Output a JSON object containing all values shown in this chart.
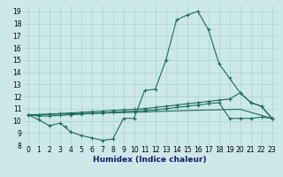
{
  "xlabel": "Humidex (Indice chaleur)",
  "xlim": [
    -0.5,
    23.5
  ],
  "ylim": [
    8,
    19.5
  ],
  "xticks": [
    0,
    1,
    2,
    3,
    4,
    5,
    6,
    7,
    8,
    9,
    10,
    11,
    12,
    13,
    14,
    15,
    16,
    17,
    18,
    19,
    20,
    21,
    22,
    23
  ],
  "yticks": [
    8,
    9,
    10,
    11,
    12,
    13,
    14,
    15,
    16,
    17,
    18,
    19
  ],
  "bg_color": "#cce8e8",
  "grid_color": "#b0d0d0",
  "line_color": "#1a6b5a",
  "line1_x": [
    0,
    1,
    2,
    3,
    3.5,
    4,
    5,
    6,
    7,
    8,
    9,
    10,
    11,
    12,
    13,
    14,
    15,
    16,
    17,
    18,
    19,
    20,
    21,
    22,
    23
  ],
  "line1_y": [
    10.5,
    10.1,
    9.6,
    9.8,
    9.5,
    9.1,
    8.8,
    8.6,
    8.4,
    8.5,
    10.2,
    10.2,
    12.5,
    12.6,
    15.0,
    18.3,
    18.7,
    19.0,
    17.5,
    14.7,
    13.5,
    12.3,
    11.5,
    11.2,
    10.2
  ],
  "line2_x": [
    0,
    1,
    2,
    3,
    4,
    5,
    6,
    7,
    8,
    9,
    10,
    11,
    12,
    13,
    14,
    15,
    16,
    17,
    18,
    19,
    20,
    21,
    22,
    23
  ],
  "line2_y": [
    10.5,
    10.5,
    10.55,
    10.6,
    10.65,
    10.7,
    10.75,
    10.8,
    10.85,
    10.9,
    10.95,
    11.0,
    11.1,
    11.2,
    11.3,
    11.4,
    11.5,
    11.6,
    11.7,
    11.8,
    12.3,
    11.5,
    11.2,
    10.2
  ],
  "line3_x": [
    0,
    1,
    2,
    3,
    4,
    5,
    6,
    7,
    8,
    9,
    10,
    11,
    12,
    13,
    14,
    15,
    16,
    17,
    18,
    19,
    20,
    21,
    22,
    23
  ],
  "line3_y": [
    10.5,
    10.4,
    10.4,
    10.45,
    10.5,
    10.55,
    10.6,
    10.65,
    10.7,
    10.75,
    10.8,
    10.85,
    10.9,
    11.0,
    11.1,
    11.2,
    11.3,
    11.4,
    11.5,
    10.2,
    10.2,
    10.2,
    10.3,
    10.2
  ],
  "line4_x": [
    0,
    5,
    10,
    15,
    20,
    23
  ],
  "line4_y": [
    10.5,
    10.6,
    10.7,
    10.85,
    10.95,
    10.2
  ]
}
